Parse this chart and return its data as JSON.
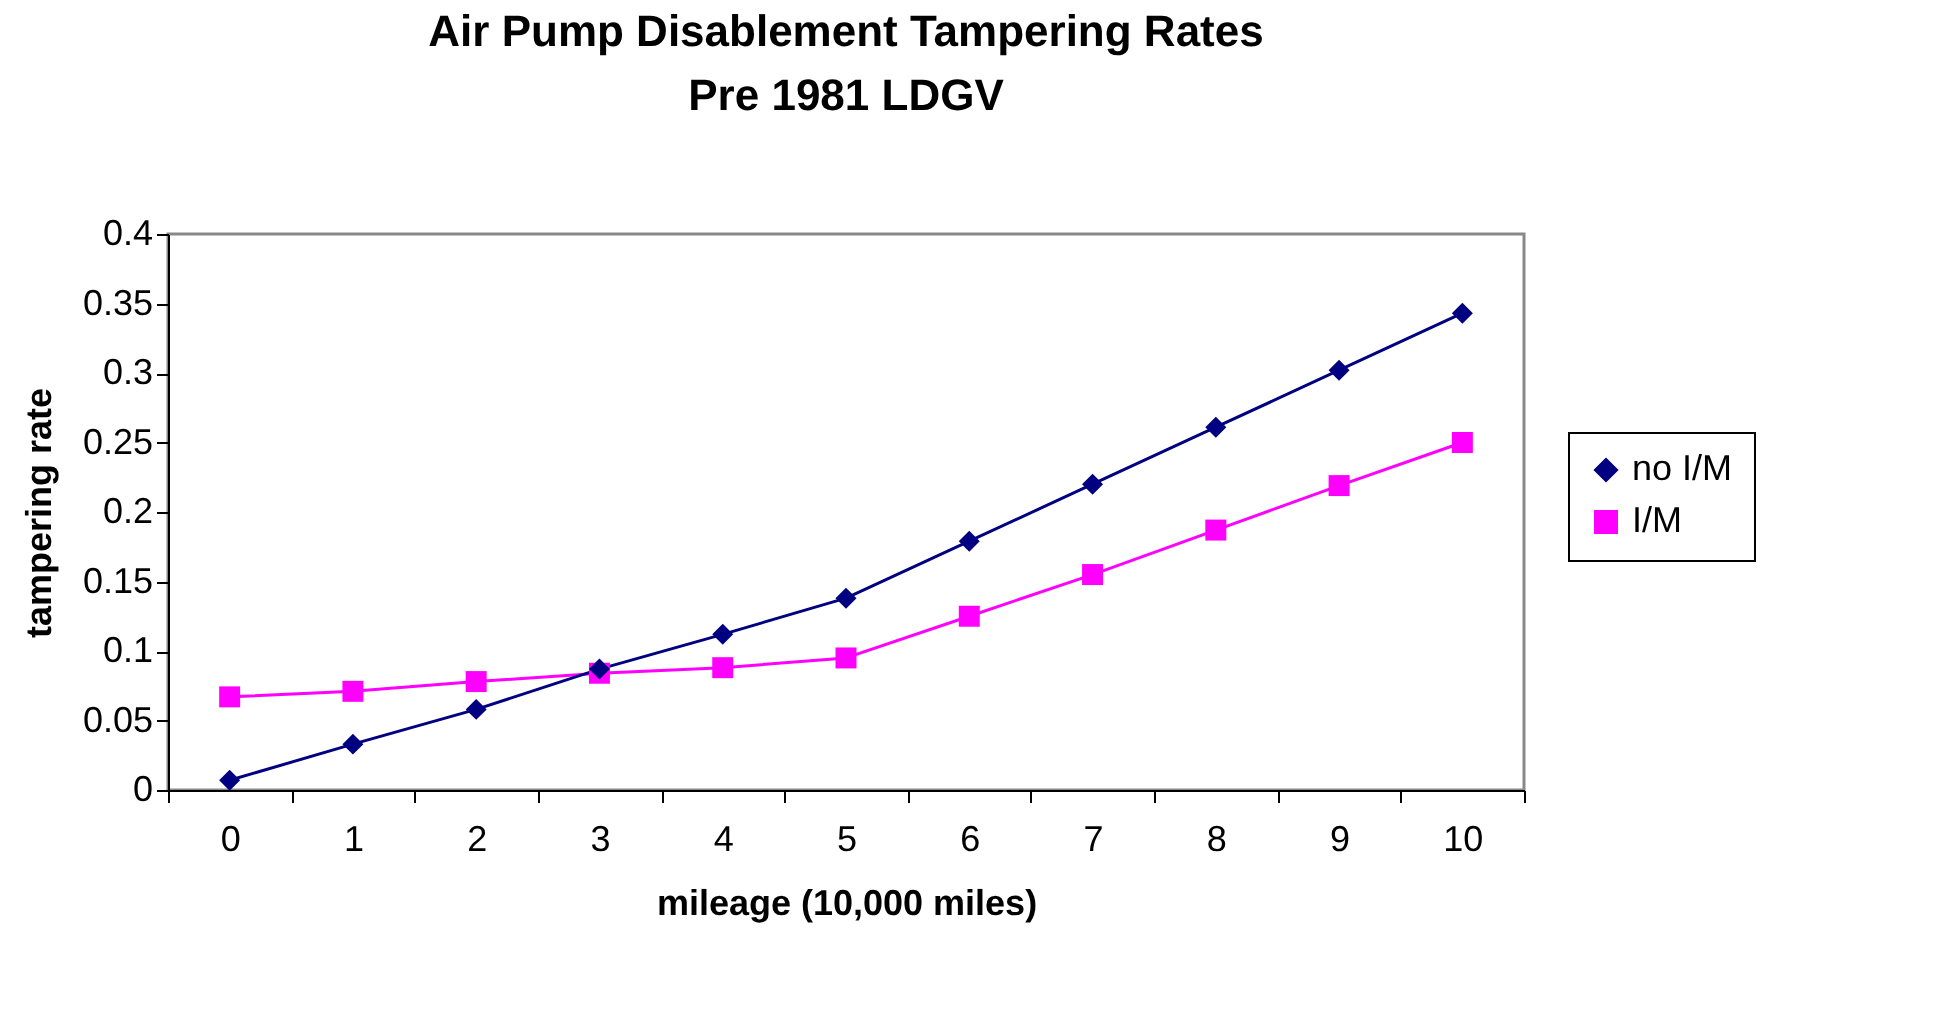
{
  "chart_data": {
    "type": "line",
    "title": "Air Pump Disablement Tampering Rates",
    "subtitle": "Pre 1981 LDGV",
    "xlabel": "mileage (10,000 miles)",
    "ylabel": "tampering rate",
    "categories": [
      "0",
      "1",
      "2",
      "3",
      "4",
      "5",
      "6",
      "7",
      "8",
      "9",
      "10"
    ],
    "series": [
      {
        "name": "no I/M",
        "color": "#000080",
        "marker": "diamond",
        "values": [
          0.007,
          0.033,
          0.058,
          0.087,
          0.112,
          0.138,
          0.179,
          0.22,
          0.261,
          0.302,
          0.343
        ]
      },
      {
        "name": "I/M",
        "color": "#ff00ff",
        "marker": "square",
        "values": [
          0.067,
          0.071,
          0.078,
          0.084,
          0.088,
          0.095,
          0.125,
          0.155,
          0.187,
          0.219,
          0.25
        ]
      }
    ],
    "ylim": [
      0,
      0.4
    ],
    "yticks": [
      0,
      0.05,
      0.1,
      0.15,
      0.2,
      0.25,
      0.3,
      0.35,
      0.4
    ],
    "grid": false,
    "legend": "right",
    "line_style": "solid"
  }
}
